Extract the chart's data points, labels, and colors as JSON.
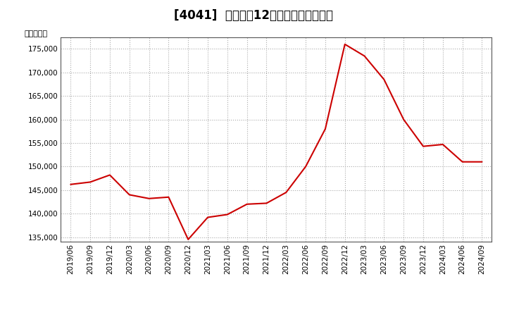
{
  "title": "[4041]  売上高の12か月移動合計の推移",
  "ylabel": "（百万円）",
  "line_color": "#cc0000",
  "bg_color": "#ffffff",
  "plot_bg_color": "#ffffff",
  "grid_color": "#aaaaaa",
  "ylim": [
    134000,
    177500
  ],
  "yticks": [
    135000,
    140000,
    145000,
    150000,
    155000,
    160000,
    165000,
    170000,
    175000
  ],
  "dates": [
    "2019/06",
    "2019/09",
    "2019/12",
    "2020/03",
    "2020/06",
    "2020/09",
    "2020/12",
    "2021/03",
    "2021/06",
    "2021/09",
    "2021/12",
    "2022/03",
    "2022/06",
    "2022/09",
    "2022/12",
    "2023/03",
    "2023/06",
    "2023/09",
    "2023/12",
    "2024/03",
    "2024/06",
    "2024/09"
  ],
  "values": [
    146200,
    146700,
    148200,
    144000,
    143200,
    143500,
    134500,
    139200,
    139800,
    142000,
    142200,
    144500,
    150000,
    158000,
    176000,
    173500,
    168500,
    160000,
    154300,
    154700,
    151000,
    151000
  ],
  "title_fontsize": 12,
  "tick_fontsize": 7.5,
  "ylabel_fontsize": 8
}
